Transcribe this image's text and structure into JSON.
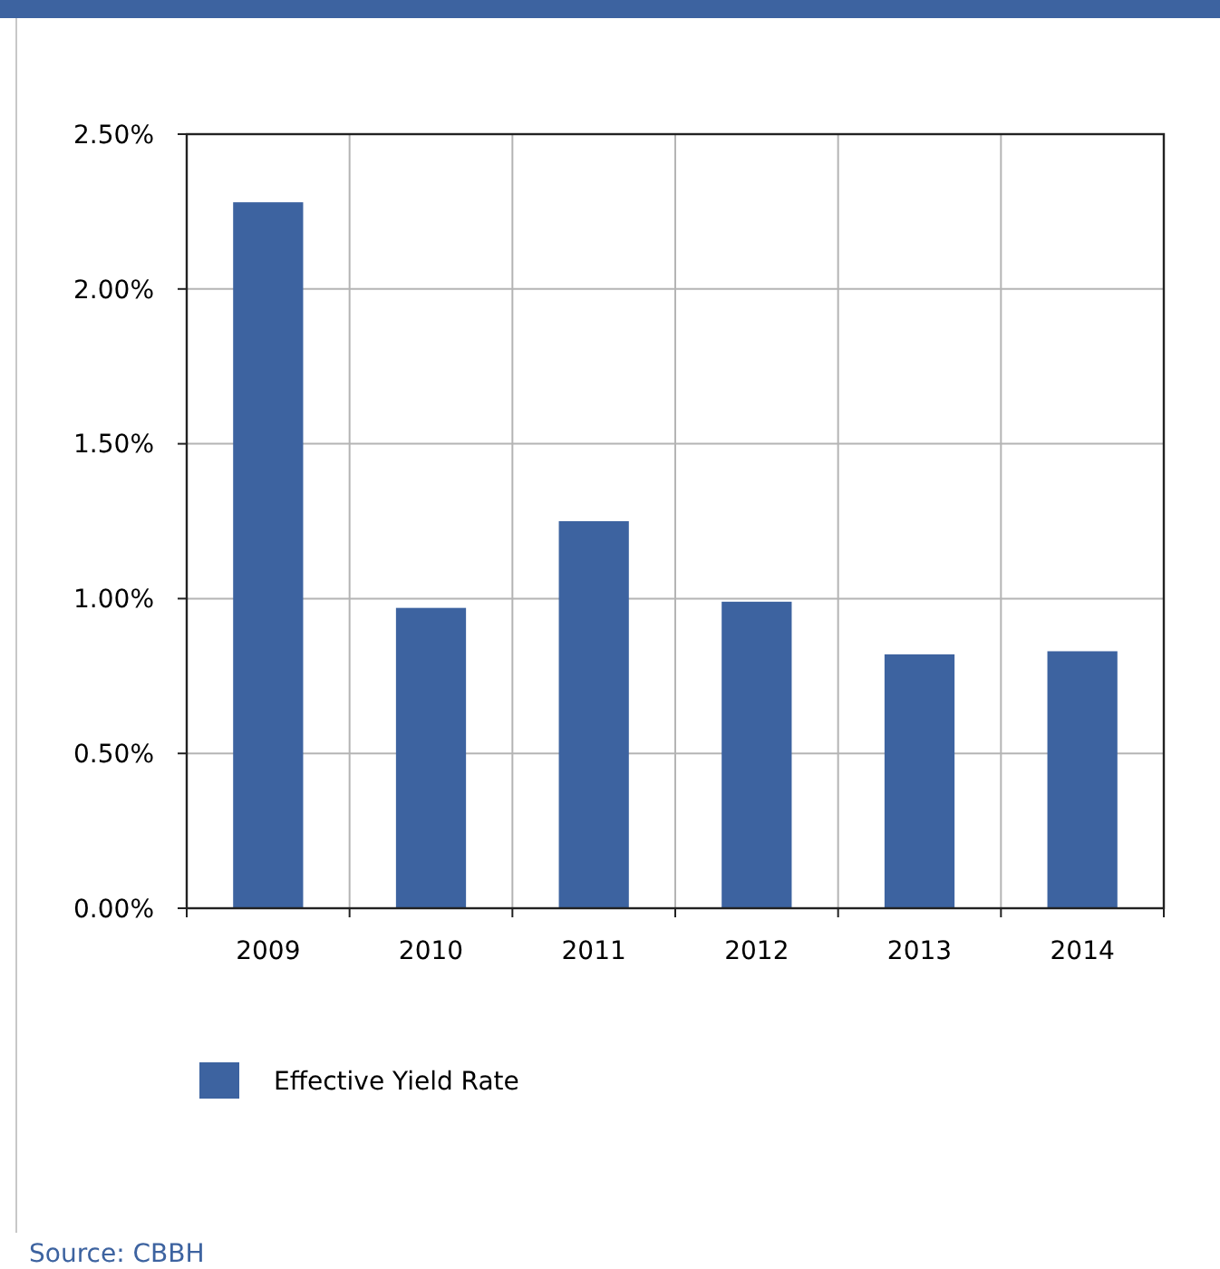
{
  "chart_data": {
    "type": "bar",
    "categories": [
      "2009",
      "2010",
      "2011",
      "2012",
      "2013",
      "2014"
    ],
    "series": [
      {
        "name": "Effective Yield Rate",
        "color": "#3d63a0",
        "values": [
          2.28,
          0.97,
          1.25,
          0.99,
          0.82,
          0.83
        ]
      }
    ],
    "ylim": [
      0,
      2.5
    ],
    "yticks": [
      {
        "value": 0,
        "label": "0.00%"
      },
      {
        "value": 0.5,
        "label": "0.50%"
      },
      {
        "value": 1,
        "label": "1.00%"
      },
      {
        "value": 1.5,
        "label": "1.50%"
      },
      {
        "value": 2,
        "label": "2.00%"
      },
      {
        "value": 2.5,
        "label": "2.50%"
      }
    ],
    "grid": true,
    "legend": "bottom left",
    "annotations": [
      "Source: CBBH"
    ]
  }
}
